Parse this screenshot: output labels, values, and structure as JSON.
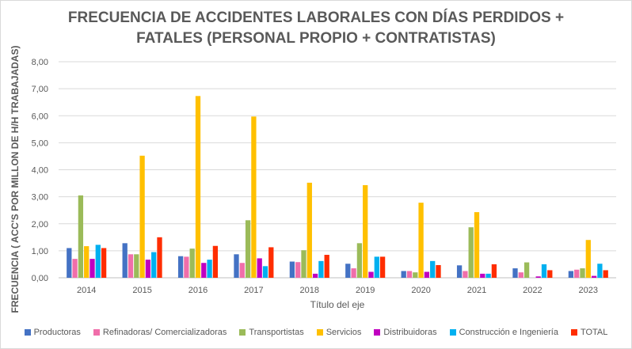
{
  "chart_data": {
    "type": "bar",
    "title_line1": "FRECUENCIA DE ACCIDENTES LABORALES CON DÍAS PERDIDOS +",
    "title_line2": "FATALES (PERSONAL PROPIO + CONTRATISTAS)",
    "xlabel": "Título del eje",
    "ylabel": "FRECUENCIA ( ACC'S POR MILLON DE H/H TRABAJADAS)",
    "categories": [
      "2014",
      "2015",
      "2016",
      "2017",
      "2018",
      "2019",
      "2020",
      "2021",
      "2022",
      "2023"
    ],
    "ylim": [
      0,
      8
    ],
    "yticks": [
      "0,00",
      "1,00",
      "2,00",
      "3,00",
      "4,00",
      "5,00",
      "6,00",
      "7,00",
      "8,00"
    ],
    "grid": true,
    "legend_position": "bottom",
    "series": [
      {
        "name": "Productoras",
        "color": "#4472C4",
        "values": [
          1.1,
          1.28,
          0.8,
          0.87,
          0.6,
          0.52,
          0.25,
          0.46,
          0.35,
          0.25
        ]
      },
      {
        "name": "Refinadoras/ Comercializadoras",
        "color": "#F06EAA",
        "values": [
          0.7,
          0.87,
          0.78,
          0.55,
          0.58,
          0.35,
          0.25,
          0.25,
          0.2,
          0.3
        ]
      },
      {
        "name": "Transportistas",
        "color": "#9BBB59",
        "values": [
          3.05,
          0.87,
          1.08,
          2.13,
          1.02,
          1.28,
          0.2,
          1.87,
          0.57,
          0.35
        ]
      },
      {
        "name": "Servicios",
        "color": "#FFC000",
        "values": [
          1.17,
          4.52,
          6.73,
          5.97,
          3.52,
          3.43,
          2.78,
          2.43,
          0.0,
          1.4
        ]
      },
      {
        "name": "Distribuidoras",
        "color": "#C000C0",
        "values": [
          0.7,
          0.67,
          0.55,
          0.72,
          0.15,
          0.22,
          0.22,
          0.15,
          0.05,
          0.07
        ]
      },
      {
        "name": "Construcción e Ingeniería",
        "color": "#00B0F0",
        "values": [
          1.22,
          0.95,
          0.67,
          0.43,
          0.62,
          0.78,
          0.62,
          0.15,
          0.5,
          0.52
        ]
      },
      {
        "name": "TOTAL",
        "color": "#FF2D00",
        "values": [
          1.1,
          1.5,
          1.18,
          1.13,
          0.85,
          0.78,
          0.47,
          0.5,
          0.28,
          0.28
        ]
      }
    ]
  }
}
